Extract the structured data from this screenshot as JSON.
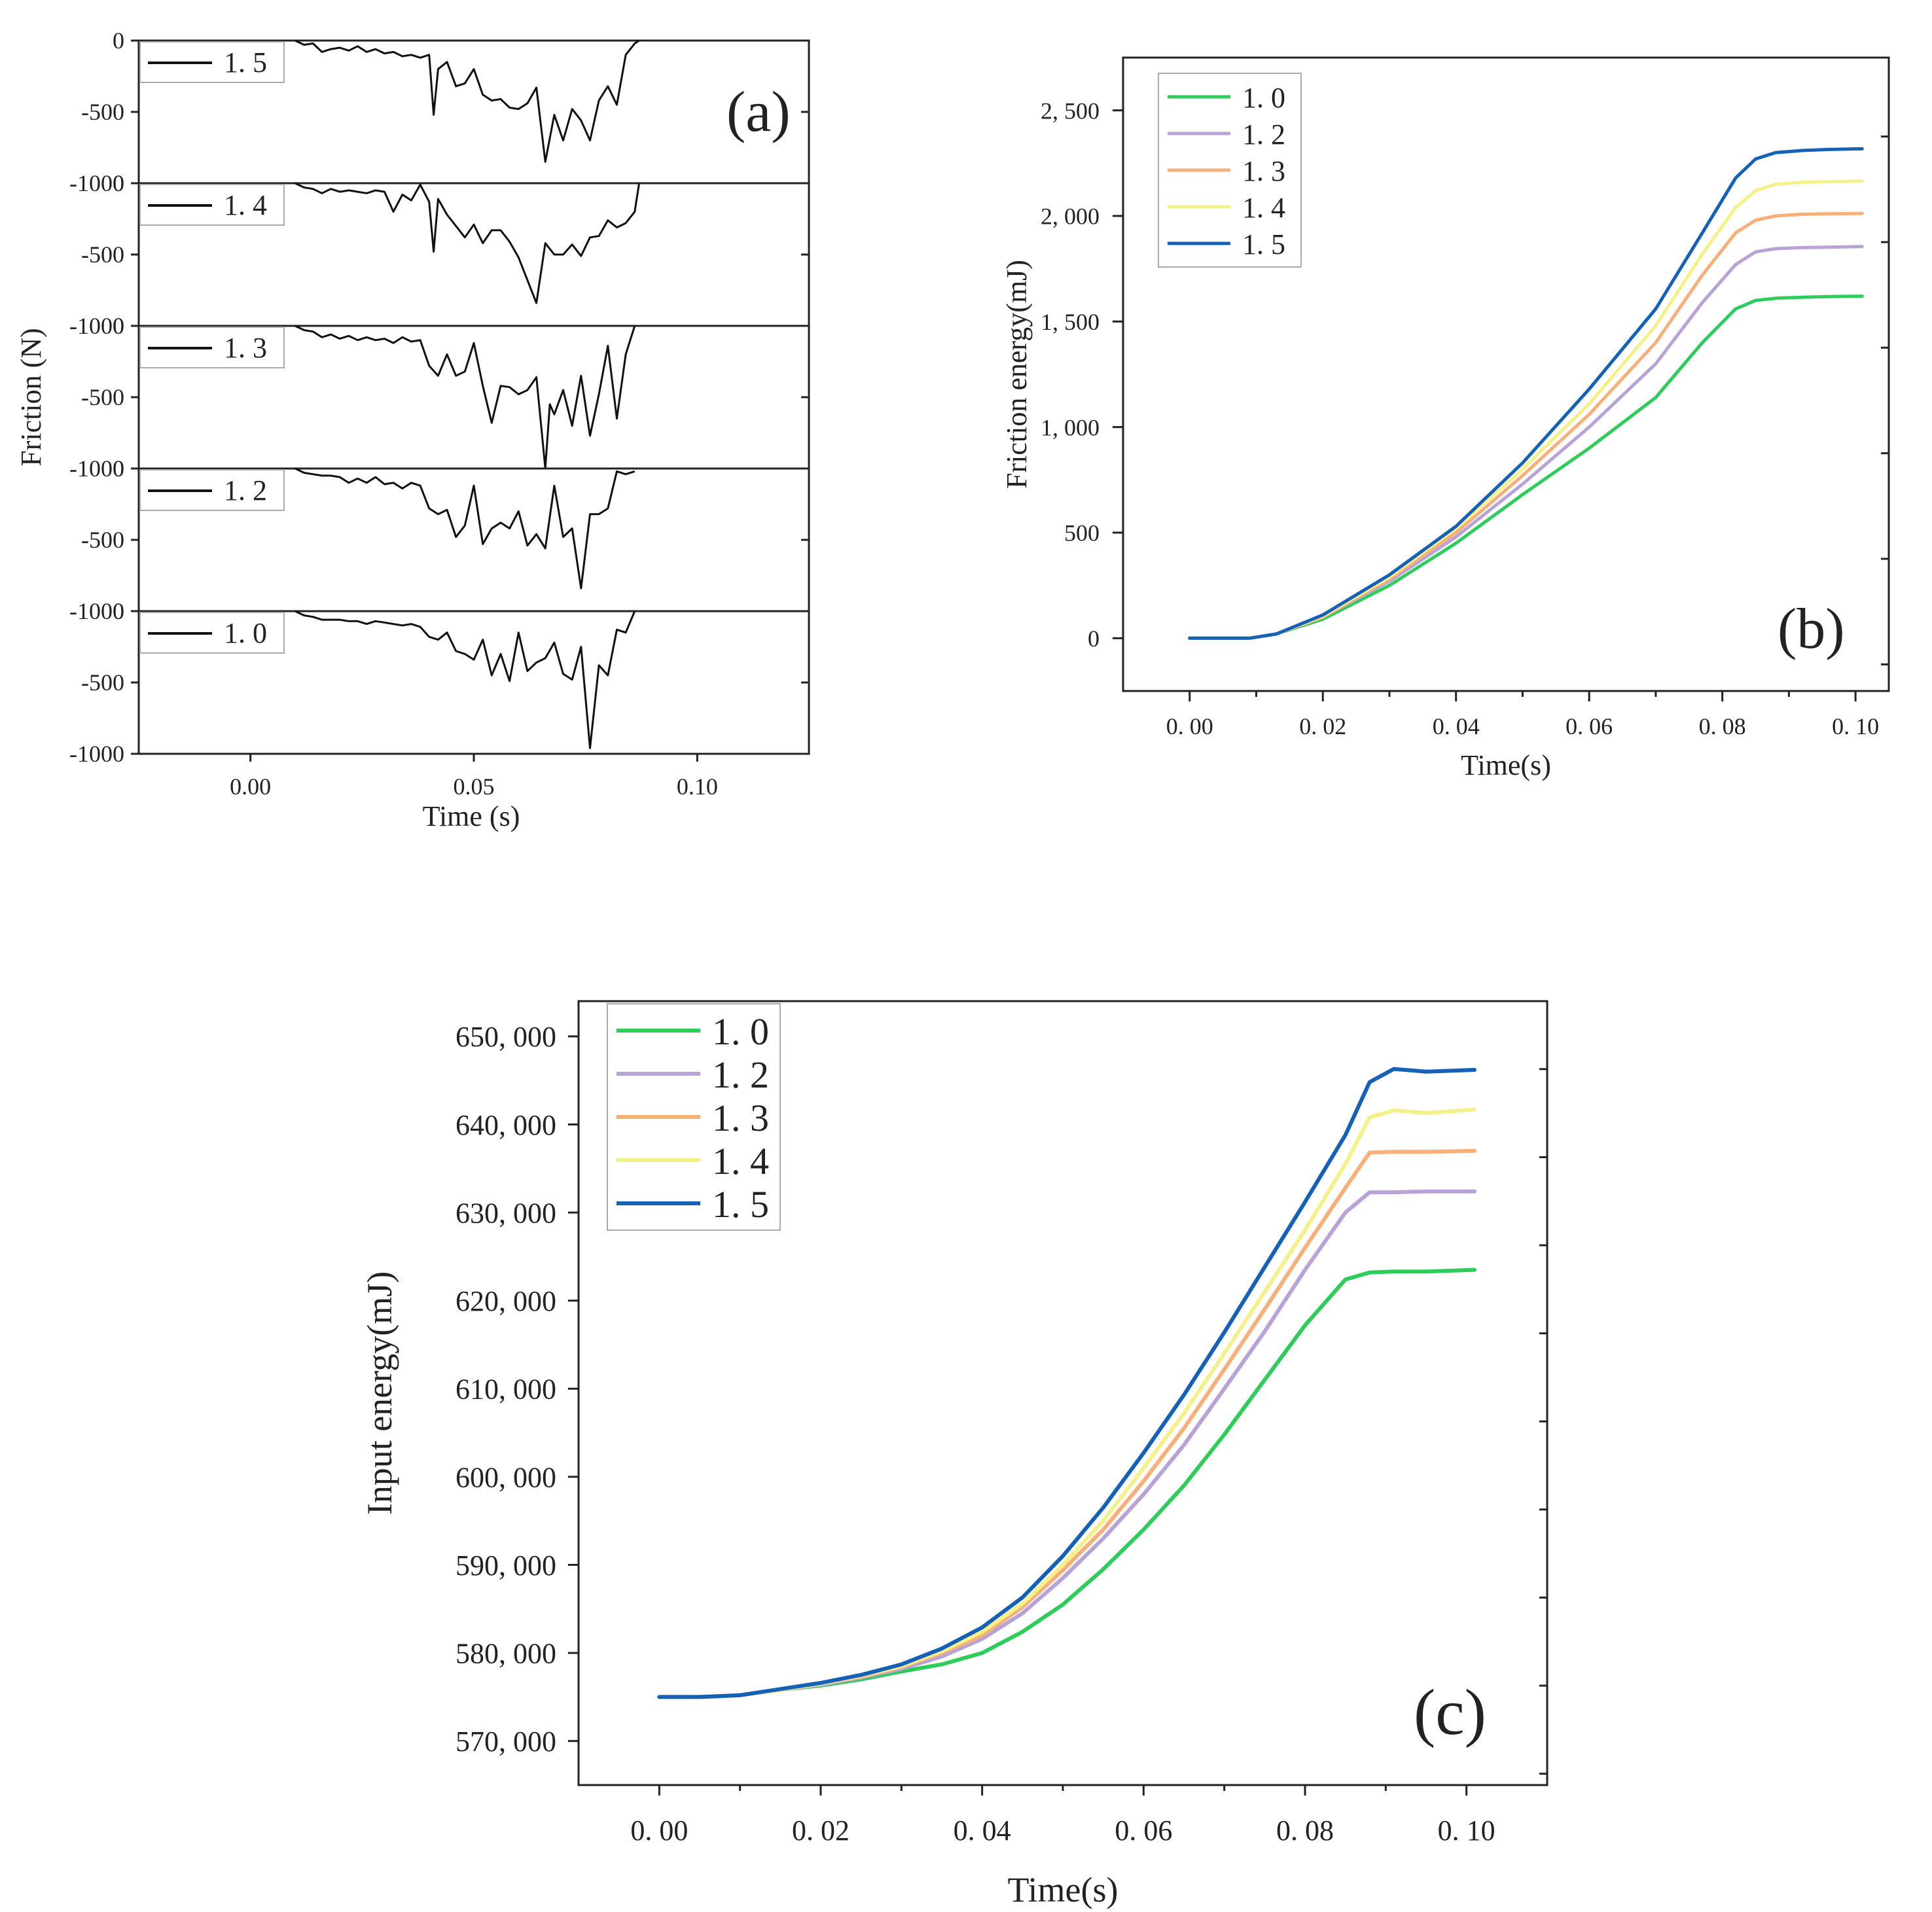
{
  "chart_data": [
    {
      "panel": "(a)",
      "type": "line",
      "xlabel": "Time (s)",
      "ylabel": "Friction (N)",
      "xlim": [
        -0.025,
        0.125
      ],
      "x_ticks": [
        "0.00",
        "0.05",
        "0.10"
      ],
      "x_tick_values": [
        0.0,
        0.05,
        0.1
      ],
      "subplots": [
        {
          "legend": "1. 5",
          "ylim": [
            -1000,
            0
          ],
          "y_ticks": [
            "0",
            "-500",
            "-1000"
          ],
          "series": {
            "x": [
              0.01,
              0.012,
              0.014,
              0.016,
              0.018,
              0.02,
              0.022,
              0.024,
              0.026,
              0.028,
              0.03,
              0.032,
              0.034,
              0.036,
              0.038,
              0.04,
              0.041,
              0.042,
              0.044,
              0.046,
              0.048,
              0.05,
              0.052,
              0.054,
              0.056,
              0.058,
              0.06,
              0.062,
              0.064,
              0.066,
              0.068,
              0.07,
              0.072,
              0.074,
              0.076,
              0.078,
              0.08,
              0.082,
              0.084,
              0.086,
              0.087
            ],
            "y": [
              0,
              -30,
              -20,
              -80,
              -60,
              -50,
              -70,
              -40,
              -80,
              -60,
              -90,
              -80,
              -110,
              -100,
              -120,
              -100,
              -520,
              -200,
              -150,
              -320,
              -300,
              -200,
              -380,
              -420,
              -410,
              -470,
              -480,
              -440,
              -330,
              -850,
              -520,
              -700,
              -480,
              -560,
              -700,
              -420,
              -320,
              -450,
              -100,
              -20,
              0
            ]
          }
        },
        {
          "legend": "1. 4",
          "ylim": [
            -1000,
            0
          ],
          "y_ticks": [
            "0",
            "-500",
            "-1000"
          ],
          "series": {
            "x": [
              0.01,
              0.012,
              0.014,
              0.016,
              0.018,
              0.02,
              0.022,
              0.024,
              0.026,
              0.028,
              0.03,
              0.032,
              0.034,
              0.036,
              0.038,
              0.04,
              0.041,
              0.042,
              0.044,
              0.046,
              0.048,
              0.05,
              0.052,
              0.054,
              0.056,
              0.058,
              0.06,
              0.062,
              0.064,
              0.066,
              0.068,
              0.07,
              0.072,
              0.074,
              0.076,
              0.078,
              0.08,
              0.082,
              0.084,
              0.086,
              0.087
            ],
            "y": [
              0,
              -30,
              -40,
              -70,
              -40,
              -60,
              -50,
              -60,
              -70,
              -50,
              -60,
              -200,
              -80,
              -120,
              -10,
              -130,
              -480,
              -110,
              -220,
              -300,
              -380,
              -290,
              -420,
              -330,
              -330,
              -410,
              -520,
              -680,
              -840,
              -420,
              -500,
              -500,
              -430,
              -510,
              -380,
              -370,
              -260,
              -310,
              -280,
              -200,
              0
            ]
          }
        },
        {
          "legend": "1. 3",
          "ylim": [
            -1000,
            0
          ],
          "y_ticks": [
            "0",
            "-500",
            "-1000"
          ],
          "series": {
            "x": [
              0.01,
              0.012,
              0.014,
              0.016,
              0.018,
              0.02,
              0.022,
              0.024,
              0.026,
              0.028,
              0.03,
              0.032,
              0.034,
              0.036,
              0.038,
              0.04,
              0.042,
              0.044,
              0.046,
              0.048,
              0.05,
              0.052,
              0.054,
              0.056,
              0.058,
              0.06,
              0.062,
              0.064,
              0.066,
              0.067,
              0.068,
              0.07,
              0.072,
              0.074,
              0.076,
              0.078,
              0.08,
              0.082,
              0.084,
              0.086
            ],
            "y": [
              0,
              -30,
              -40,
              -80,
              -60,
              -90,
              -70,
              -100,
              -80,
              -100,
              -90,
              -120,
              -80,
              -110,
              -100,
              -280,
              -350,
              -200,
              -350,
              -320,
              -120,
              -420,
              -680,
              -420,
              -430,
              -480,
              -450,
              -360,
              -1000,
              -550,
              -620,
              -450,
              -700,
              -350,
              -770,
              -480,
              -140,
              -650,
              -200,
              0
            ]
          }
        },
        {
          "legend": "1. 2",
          "ylim": [
            -1000,
            0
          ],
          "y_ticks": [
            "0",
            "-500",
            "-1000"
          ],
          "series": {
            "x": [
              0.01,
              0.012,
              0.014,
              0.016,
              0.018,
              0.02,
              0.022,
              0.024,
              0.026,
              0.028,
              0.03,
              0.032,
              0.034,
              0.036,
              0.038,
              0.04,
              0.042,
              0.044,
              0.046,
              0.048,
              0.05,
              0.052,
              0.054,
              0.056,
              0.058,
              0.06,
              0.062,
              0.064,
              0.066,
              0.068,
              0.07,
              0.072,
              0.074,
              0.076,
              0.078,
              0.08,
              0.082,
              0.084,
              0.086
            ],
            "y": [
              0,
              -30,
              -40,
              -50,
              -50,
              -60,
              -100,
              -70,
              -100,
              -60,
              -110,
              -100,
              -140,
              -100,
              -120,
              -280,
              -320,
              -290,
              -480,
              -400,
              -120,
              -530,
              -420,
              -380,
              -420,
              -300,
              -540,
              -460,
              -560,
              -120,
              -480,
              -420,
              -840,
              -320,
              -320,
              -280,
              -20,
              -40,
              -20
            ]
          }
        },
        {
          "legend": "1. 0",
          "ylim": [
            -1000,
            0
          ],
          "y_ticks": [
            "0",
            "-500",
            "-1000"
          ],
          "series": {
            "x": [
              0.01,
              0.012,
              0.014,
              0.016,
              0.018,
              0.02,
              0.022,
              0.024,
              0.026,
              0.028,
              0.03,
              0.032,
              0.034,
              0.036,
              0.038,
              0.04,
              0.042,
              0.044,
              0.046,
              0.048,
              0.05,
              0.052,
              0.054,
              0.056,
              0.058,
              0.06,
              0.062,
              0.064,
              0.066,
              0.068,
              0.07,
              0.072,
              0.074,
              0.076,
              0.078,
              0.08,
              0.082,
              0.084,
              0.086
            ],
            "y": [
              0,
              -30,
              -40,
              -60,
              -60,
              -60,
              -70,
              -70,
              -90,
              -70,
              -80,
              -90,
              -100,
              -90,
              -110,
              -180,
              -200,
              -150,
              -280,
              -300,
              -340,
              -200,
              -450,
              -300,
              -490,
              -150,
              -420,
              -360,
              -330,
              -220,
              -440,
              -480,
              -250,
              -960,
              -380,
              -450,
              -130,
              -150,
              0
            ]
          }
        }
      ]
    },
    {
      "panel": "(b)",
      "type": "line",
      "xlabel": "Time(s)",
      "ylabel": "Friction energy(mJ)",
      "xlim": [
        -0.01,
        0.105
      ],
      "ylim": [
        -250,
        2750
      ],
      "x_ticks": [
        "0. 00",
        "0. 02",
        "0. 04",
        "0. 06",
        "0. 08",
        "0. 10"
      ],
      "x_tick_values": [
        0.0,
        0.02,
        0.04,
        0.06,
        0.08,
        0.1
      ],
      "y_ticks": [
        "0",
        "500",
        "1, 000",
        "1, 500",
        "2, 000",
        "2, 500"
      ],
      "y_tick_values": [
        0,
        500,
        1000,
        1500,
        2000,
        2500
      ],
      "x": [
        0.0,
        0.004,
        0.009,
        0.013,
        0.02,
        0.03,
        0.04,
        0.05,
        0.06,
        0.07,
        0.077,
        0.082,
        0.085,
        0.088,
        0.092,
        0.096,
        0.101
      ],
      "series": [
        {
          "name": "1. 0",
          "color": "#2ecc5a",
          "values": [
            0,
            0,
            0,
            20,
            90,
            250,
            450,
            680,
            900,
            1140,
            1400,
            1560,
            1600,
            1610,
            1615,
            1618,
            1620
          ]
        },
        {
          "name": "1. 2",
          "color": "#b8a3d8",
          "values": [
            0,
            0,
            0,
            20,
            100,
            270,
            480,
            730,
            1000,
            1300,
            1590,
            1770,
            1830,
            1845,
            1850,
            1852,
            1855
          ]
        },
        {
          "name": "1. 3",
          "color": "#f7b07a",
          "values": [
            0,
            0,
            0,
            20,
            100,
            280,
            500,
            770,
            1060,
            1400,
            1720,
            1920,
            1980,
            2000,
            2008,
            2010,
            2012
          ]
        },
        {
          "name": "1. 4",
          "color": "#f4f18a",
          "values": [
            0,
            0,
            0,
            20,
            105,
            290,
            520,
            800,
            1110,
            1480,
            1820,
            2040,
            2120,
            2150,
            2160,
            2162,
            2165
          ]
        },
        {
          "name": "1. 5",
          "color": "#1461b7",
          "values": [
            0,
            0,
            0,
            20,
            110,
            300,
            530,
            830,
            1180,
            1560,
            1920,
            2180,
            2270,
            2300,
            2310,
            2315,
            2318
          ]
        }
      ]
    },
    {
      "panel": "(c)",
      "type": "line",
      "xlabel": "Time(s)",
      "ylabel": "Input energy(mJ)",
      "xlim": [
        -0.01,
        0.11
      ],
      "ylim": [
        565000,
        654000
      ],
      "x_ticks": [
        "0. 00",
        "0. 02",
        "0. 04",
        "0. 06",
        "0. 08",
        "0. 10"
      ],
      "x_tick_values": [
        0.0,
        0.02,
        0.04,
        0.06,
        0.08,
        0.1
      ],
      "y_ticks": [
        "570, 000",
        "580, 000",
        "590, 000",
        "600, 000",
        "610, 000",
        "620, 000",
        "630, 000",
        "640, 000",
        "650, 000"
      ],
      "y_tick_values": [
        570000,
        580000,
        590000,
        600000,
        610000,
        620000,
        630000,
        640000,
        650000
      ],
      "x": [
        0.0,
        0.005,
        0.01,
        0.015,
        0.02,
        0.025,
        0.03,
        0.035,
        0.04,
        0.045,
        0.05,
        0.055,
        0.06,
        0.065,
        0.07,
        0.075,
        0.08,
        0.085,
        0.088,
        0.091,
        0.095,
        0.101
      ],
      "series": [
        {
          "name": "1. 0",
          "color": "#2ecc5a",
          "values": [
            575000,
            575000,
            575200,
            575800,
            576300,
            577000,
            577900,
            578700,
            580000,
            582400,
            585500,
            589500,
            594000,
            599000,
            604800,
            611000,
            617200,
            622400,
            623200,
            623300,
            623300,
            623500
          ]
        },
        {
          "name": "1. 2",
          "color": "#b8a3d8",
          "values": [
            575000,
            575000,
            575200,
            575800,
            576400,
            577200,
            578200,
            579600,
            581600,
            584500,
            588500,
            593000,
            598000,
            603600,
            610000,
            616500,
            623500,
            630000,
            632300,
            632300,
            632400,
            632400
          ]
        },
        {
          "name": "1. 3",
          "color": "#f7b07a",
          "values": [
            575000,
            575000,
            575200,
            575800,
            576500,
            577300,
            578400,
            580000,
            582000,
            585200,
            589400,
            594000,
            599500,
            605500,
            612200,
            619000,
            626000,
            632800,
            636800,
            636900,
            636900,
            637000
          ]
        },
        {
          "name": "1. 4",
          "color": "#f4f18a",
          "values": [
            575000,
            575000,
            575200,
            575800,
            576500,
            577400,
            578500,
            580200,
            582400,
            585600,
            590000,
            595000,
            601000,
            607200,
            614000,
            621000,
            628000,
            635500,
            640800,
            641600,
            641300,
            641700
          ]
        },
        {
          "name": "1. 5",
          "color": "#1461b7",
          "values": [
            575000,
            575000,
            575200,
            575900,
            576600,
            577500,
            578700,
            580500,
            582900,
            586300,
            591000,
            596500,
            602700,
            609300,
            616400,
            623800,
            631200,
            638800,
            644800,
            646300,
            646000,
            646200
          ]
        }
      ]
    }
  ]
}
